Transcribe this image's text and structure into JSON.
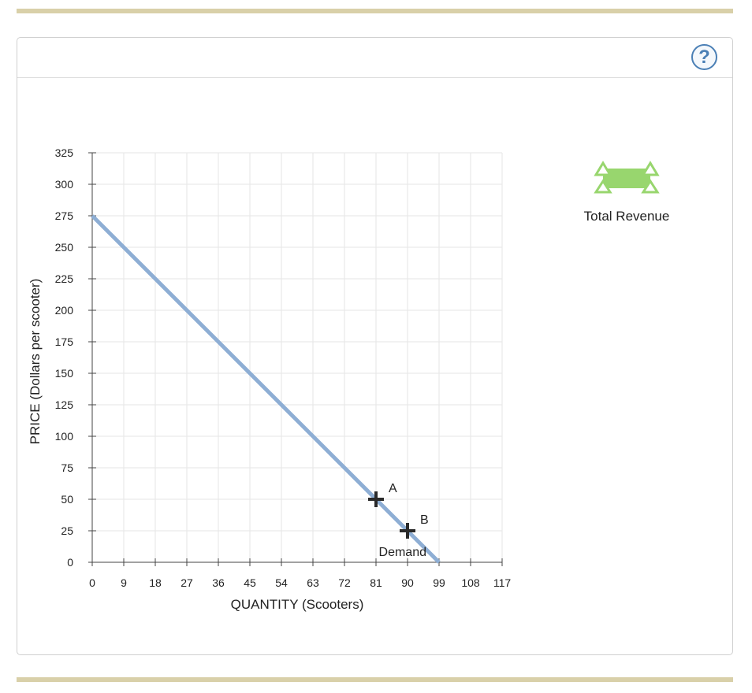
{
  "toolbar": {
    "help_label": "?"
  },
  "palette": {
    "tool_label": "Total Revenue",
    "tool_color": "#98d66e"
  },
  "chart_data": {
    "type": "line",
    "xlabel": "QUANTITY (Scooters)",
    "ylabel": "PRICE (Dollars per scooter)",
    "xlim": [
      0,
      117
    ],
    "ylim": [
      0,
      325
    ],
    "xticks": [
      0,
      9,
      18,
      27,
      36,
      45,
      54,
      63,
      72,
      81,
      90,
      99,
      108,
      117
    ],
    "yticks": [
      0,
      25,
      50,
      75,
      100,
      125,
      150,
      175,
      200,
      225,
      250,
      275,
      300,
      325
    ],
    "grid": true,
    "series": [
      {
        "name": "Demand",
        "color": "#8eaed4",
        "x": [
          0,
          99
        ],
        "y": [
          275,
          0
        ]
      }
    ],
    "points": [
      {
        "label": "A",
        "x": 81,
        "y": 50
      },
      {
        "label": "B",
        "x": 90,
        "y": 25
      }
    ]
  }
}
